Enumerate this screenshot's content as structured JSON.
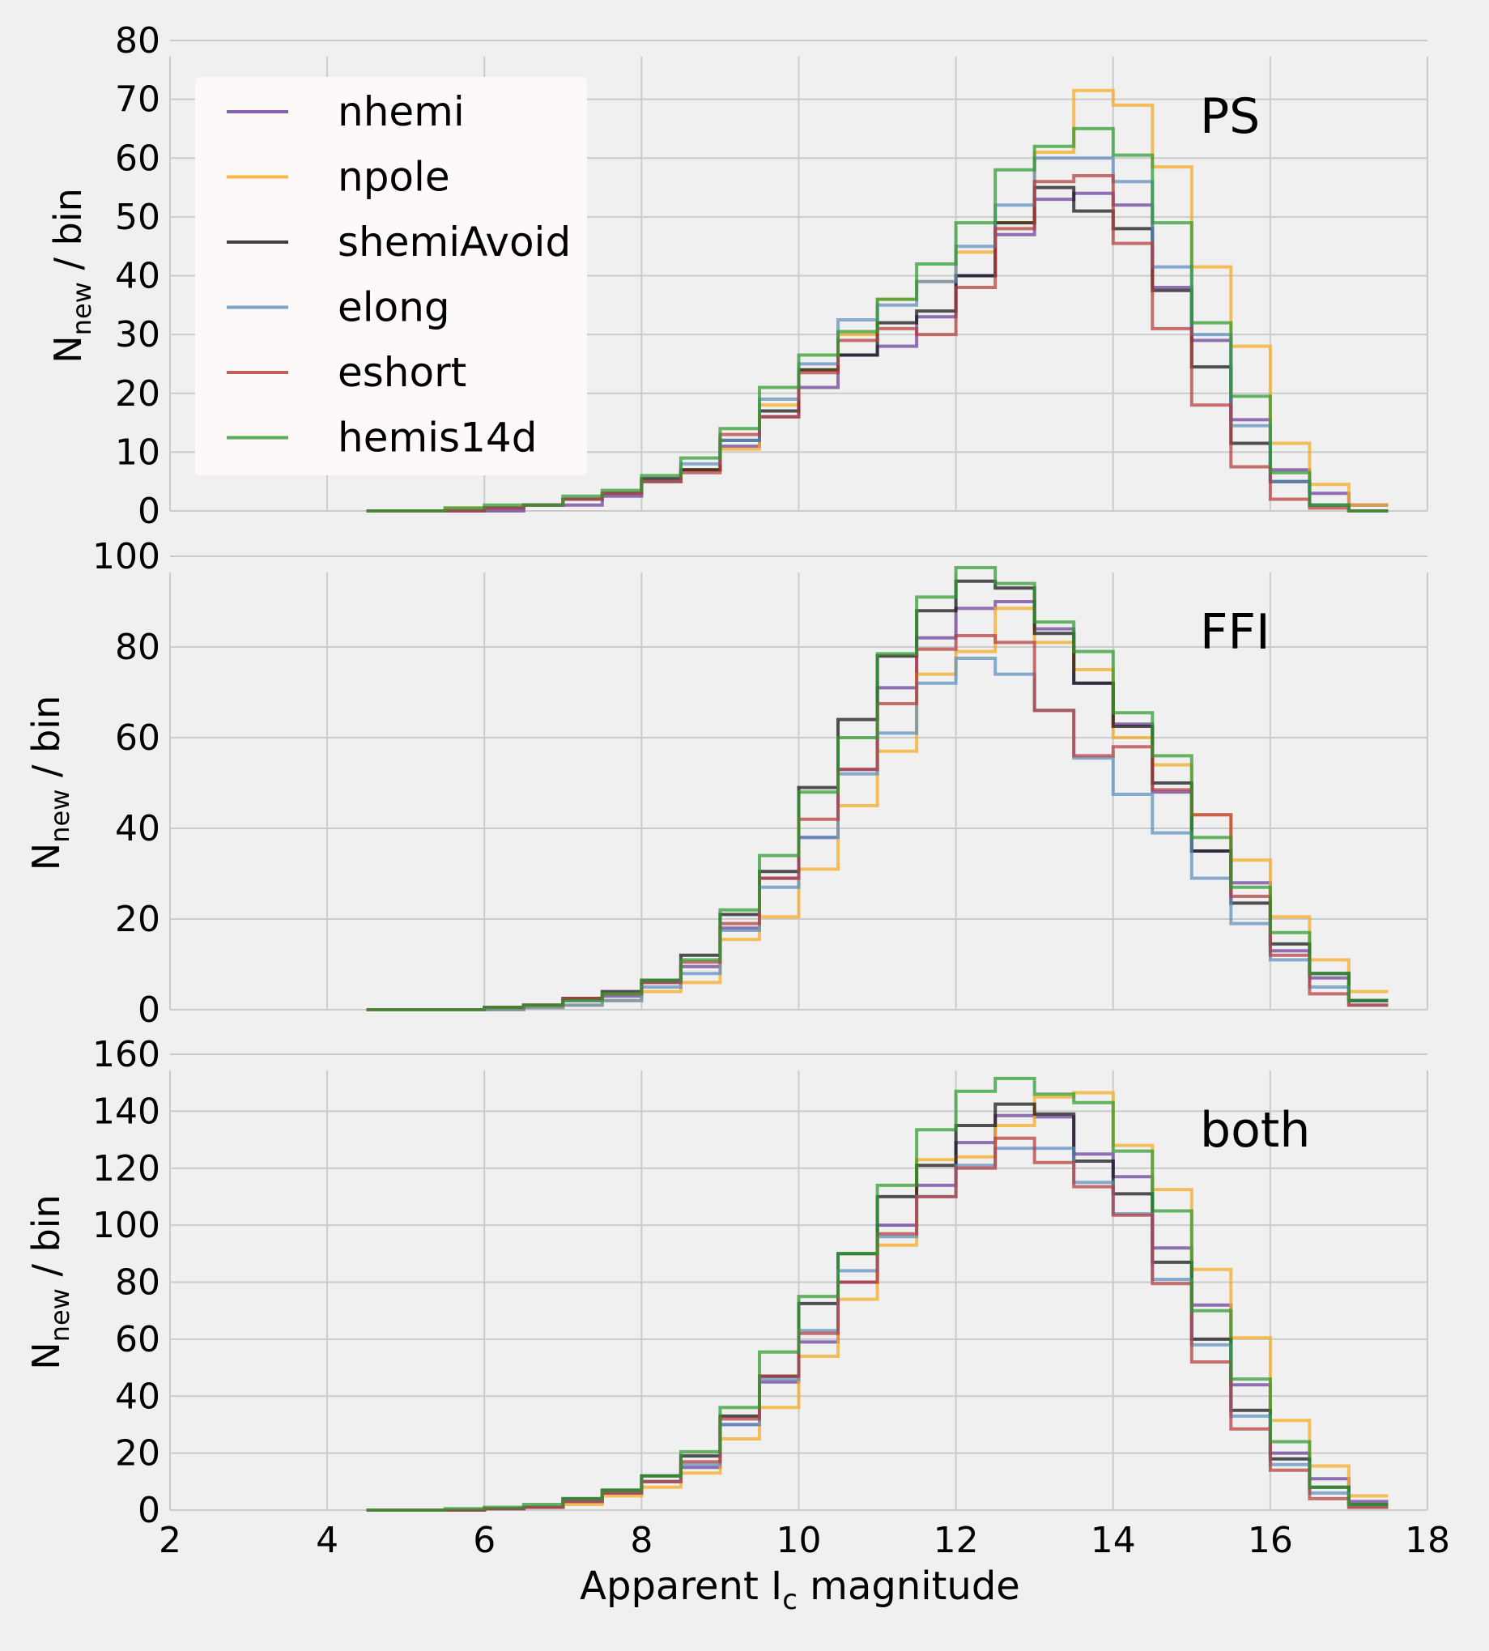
{
  "chart_data": {
    "type": "histogram-step",
    "xlabel": "Apparent I",
    "xlabel_sub": "c",
    "xlabel_suffix": " magnitude",
    "ylabel": "N",
    "ylabel_sub": "new",
    "ylabel_suffix": " / bin",
    "xlim": [
      2,
      18
    ],
    "xticks": [
      "2",
      "4",
      "6",
      "8",
      "10",
      "12",
      "14",
      "16",
      "18"
    ],
    "bin_edges": [
      4.5,
      5.0,
      5.5,
      6.0,
      6.5,
      7.0,
      7.5,
      8.0,
      8.5,
      9.0,
      9.5,
      10.0,
      10.5,
      11.0,
      11.5,
      12.0,
      12.5,
      13.0,
      13.5,
      14.0,
      14.5,
      15.0,
      15.5,
      16.0,
      16.5,
      17.0,
      17.5
    ],
    "grid": true,
    "legend": {
      "placement": "top-left of first panel",
      "entries": [
        "nhemi",
        "npole",
        "shemiAvoid",
        "elong",
        "eshort",
        "hemis14d"
      ]
    },
    "series_colors": {
      "nhemi": "#6a3d9a",
      "npole": "#f7a91e",
      "shemiAvoid": "#111111",
      "elong": "#5b8fc0",
      "eshort": "#b53a3a",
      "hemis14d": "#2e9a2e"
    },
    "panels": [
      {
        "label": "PS",
        "ylim": [
          0,
          80
        ],
        "yticks": [
          "0",
          "10",
          "20",
          "30",
          "40",
          "50",
          "60",
          "70",
          "80"
        ],
        "series": [
          {
            "name": "nhemi",
            "values": [
              0,
              0,
              0,
              0,
              1,
              1,
              2.5,
              5,
              7,
              11,
              16,
              21,
              26.5,
              28,
              33,
              40,
              47,
              53,
              54,
              52,
              38,
              29,
              15.5,
              7,
              3,
              1
            ]
          },
          {
            "name": "npole",
            "values": [
              0,
              0,
              0.5,
              0.5,
              1,
              2,
              3,
              5,
              7,
              10.5,
              18,
              24,
              30,
              36,
              39,
              44,
              49,
              61,
              71.5,
              69,
              58.5,
              41.5,
              28,
              11.5,
              4.5,
              1
            ]
          },
          {
            "name": "shemiAvoid",
            "values": [
              0,
              0,
              0,
              0.5,
              1,
              2,
              3,
              5.5,
              7,
              12,
              17,
              24,
              26.5,
              32,
              34,
              40,
              49,
              55,
              51,
              48,
              37.5,
              24.5,
              11.5,
              5,
              1,
              0
            ]
          },
          {
            "name": "elong",
            "values": [
              0,
              0,
              0,
              0.5,
              1,
              2,
              3,
              5,
              8,
              12,
              19,
              25,
              32.5,
              35,
              39,
              45,
              52,
              60,
              60,
              56,
              41.5,
              30,
              14.5,
              5,
              1,
              0
            ]
          },
          {
            "name": "eshort",
            "values": [
              0,
              0,
              0,
              0.5,
              1,
              2,
              3,
              5,
              6.5,
              13,
              16,
              23.5,
              29,
              31,
              30,
              38,
              48,
              56,
              57,
              45.5,
              31,
              18,
              7.5,
              2,
              0.5,
              0
            ]
          },
          {
            "name": "hemis14d",
            "values": [
              0,
              0,
              0.5,
              1,
              1,
              2.5,
              3.5,
              6,
              9,
              14,
              21,
              26.5,
              30.5,
              36,
              42,
              49,
              58,
              62,
              65,
              60.5,
              49,
              32,
              19.5,
              6.5,
              1,
              0
            ]
          }
        ]
      },
      {
        "label": "FFI",
        "ylim": [
          0,
          100
        ],
        "yticks": [
          "0",
          "20",
          "40",
          "60",
          "80",
          "100"
        ],
        "series": [
          {
            "name": "nhemi",
            "values": [
              0,
              0,
              0,
              0.5,
              1,
              2,
              3,
              6,
              9.5,
              18,
              29,
              38,
              53,
              71,
              82,
              88.5,
              90,
              84,
              72,
              63,
              48,
              35,
              28,
              13,
              7,
              2,
              0
            ]
          },
          {
            "name": "npole",
            "values": [
              0,
              0,
              0,
              0,
              0.5,
              1,
              2,
              4,
              6,
              15.5,
              20.5,
              31,
              45,
              57,
              74,
              79,
              88.5,
              81,
              75,
              60,
              54,
              43,
              33,
              20.5,
              11,
              4,
              0.5
            ]
          },
          {
            "name": "shemiAvoid",
            "values": [
              0,
              0,
              0,
              0.5,
              1,
              2.5,
              4,
              6.5,
              12,
              21,
              30.5,
              49,
              64,
              78,
              88,
              94.5,
              93,
              83,
              72,
              62.5,
              50,
              35,
              23.5,
              14.5,
              8,
              2,
              0
            ]
          },
          {
            "name": "elong",
            "values": [
              0,
              0,
              0,
              0,
              0.5,
              1,
              2,
              5,
              8,
              17.5,
              27,
              38,
              52,
              61,
              72,
              77.5,
              74,
              66,
              55.5,
              47.5,
              39,
              29,
              19,
              11,
              5,
              1,
              0
            ]
          },
          {
            "name": "eshort",
            "values": [
              0,
              0,
              0,
              0.5,
              1,
              2.5,
              3.5,
              6,
              10.5,
              19,
              29,
              42,
              53,
              67.5,
              79.5,
              82.5,
              81,
              66,
              56,
              58,
              48.5,
              43,
              25,
              12,
              3.5,
              1,
              0
            ]
          },
          {
            "name": "hemis14d",
            "values": [
              0,
              0,
              0,
              0.5,
              1,
              2,
              3.5,
              6.5,
              11,
              22,
              34,
              48,
              60,
              78.5,
              91,
              97.5,
              94,
              85.5,
              79,
              65.5,
              56,
              38,
              27,
              17,
              8,
              2,
              0
            ]
          }
        ]
      },
      {
        "label": "both",
        "ylim": [
          0,
          160
        ],
        "yticks": [
          "0",
          "20",
          "40",
          "60",
          "80",
          "100",
          "120",
          "140",
          "160"
        ],
        "series": [
          {
            "name": "nhemi",
            "values": [
              0,
              0,
              0,
              0.5,
              1,
              3,
              6,
              10,
              15,
              30,
              45,
              59,
              80,
              100,
              114,
              129,
              138.5,
              138,
              125,
              117,
              92,
              72,
              44,
              20,
              11,
              3,
              0
            ]
          },
          {
            "name": "npole",
            "values": [
              0,
              0,
              0,
              0.5,
              1,
              2,
              5,
              8,
              13,
              25,
              36,
              54,
              74,
              93,
              123,
              124,
              135,
              145,
              146.5,
              128,
              112.5,
              84.5,
              60.5,
              31.5,
              15.5,
              5,
              1
            ]
          },
          {
            "name": "shemiAvoid",
            "values": [
              0,
              0,
              0,
              0.5,
              1,
              4,
              7,
              12,
              19,
              33,
              47,
              72.5,
              90,
              110,
              121,
              135,
              142.5,
              139,
              122.5,
              111,
              87,
              60,
              35,
              18,
              8,
              2,
              0
            ]
          },
          {
            "name": "elong",
            "values": [
              0,
              0,
              0,
              0.5,
              1,
              3,
              6,
              10,
              16,
              30,
              46,
              63,
              84,
              96,
              110,
              121,
              127,
              127,
              115,
              104,
              81,
              58,
              33,
              16,
              6,
              1,
              0
            ]
          },
          {
            "name": "eshort",
            "values": [
              0,
              0,
              0,
              0.5,
              1,
              3,
              6,
              10,
              17,
              32,
              47,
              62,
              80,
              97,
              110,
              120,
              130.5,
              122,
              113.5,
              103.5,
              79.5,
              52,
              28.5,
              14,
              4,
              1,
              0
            ]
          },
          {
            "name": "hemis14d",
            "values": [
              0,
              0,
              0.5,
              1,
              2,
              4,
              7,
              12,
              20.5,
              36,
              55.5,
              75,
              90,
              114,
              133.5,
              147,
              151.5,
              146,
              143,
              126,
              105,
              70,
              46,
              24,
              8,
              2,
              0
            ]
          }
        ]
      }
    ]
  }
}
